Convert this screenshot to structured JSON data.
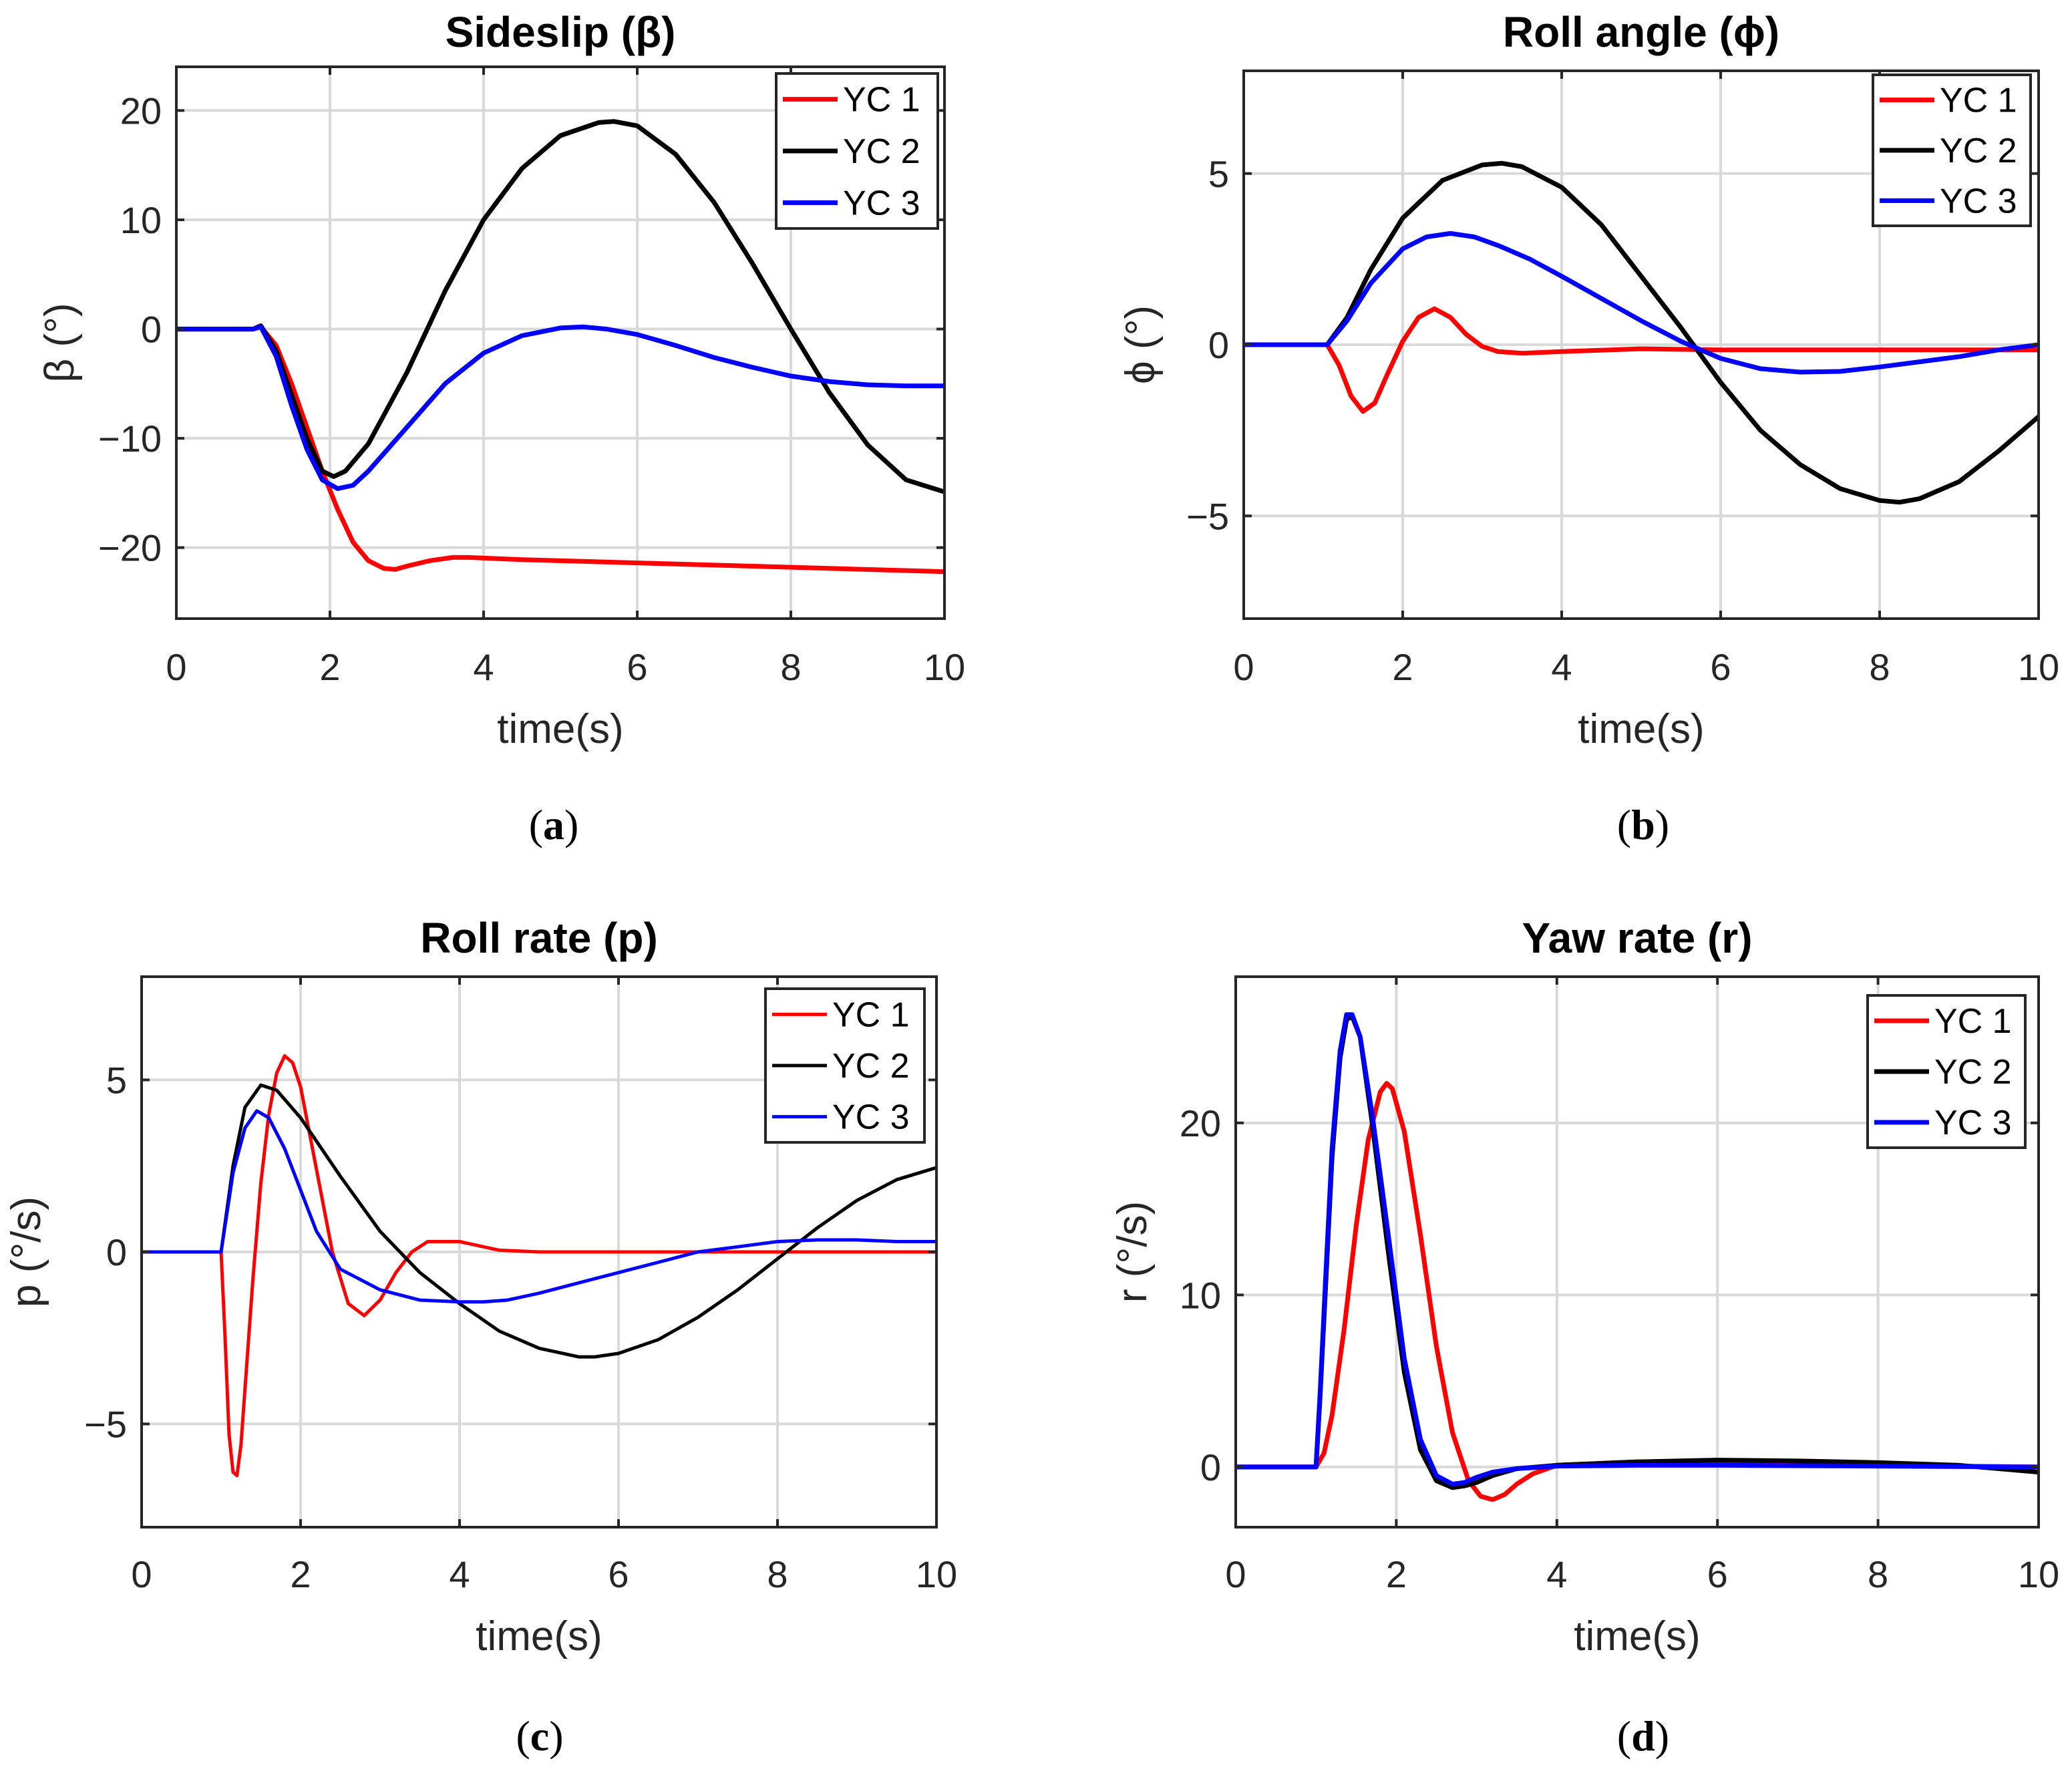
{
  "figure": {
    "panels": [
      {
        "caption_letter": "a"
      },
      {
        "caption_letter": "b"
      },
      {
        "caption_letter": "c"
      },
      {
        "caption_letter": "d"
      }
    ]
  },
  "chart_data": [
    {
      "type": "line",
      "title": "Sideslip (β)",
      "xlabel": "time(s)",
      "ylabel": "β (°)",
      "xlim": [
        0,
        10
      ],
      "ylim": [
        -26.5,
        24
      ],
      "xticks": [
        0,
        2,
        4,
        6,
        8,
        10
      ],
      "xtick_labels": [
        "0",
        "2",
        "4",
        "6",
        "8",
        "10"
      ],
      "yticks": [
        -20,
        -10,
        0,
        10,
        20
      ],
      "ytick_labels": [
        "−20",
        "−10",
        "0",
        "10",
        "20"
      ],
      "grid": true,
      "legend_position": "top-right",
      "series": [
        {
          "name": "YC 1",
          "color": "#ff0000",
          "x": [
            0,
            1.0,
            1.1,
            1.3,
            1.5,
            1.7,
            1.9,
            2.1,
            2.3,
            2.5,
            2.7,
            2.85,
            3.0,
            3.3,
            3.6,
            3.8,
            4.5,
            6,
            8,
            10
          ],
          "y": [
            0,
            0,
            0.2,
            -1.5,
            -5,
            -9,
            -13,
            -16.5,
            -19.5,
            -21.2,
            -21.9,
            -22.0,
            -21.7,
            -21.2,
            -20.9,
            -20.9,
            -21.1,
            -21.4,
            -21.8,
            -22.2
          ]
        },
        {
          "name": "YC 2",
          "color": "#000000",
          "x": [
            0,
            1.0,
            1.1,
            1.3,
            1.5,
            1.7,
            1.9,
            2.05,
            2.2,
            2.5,
            3.0,
            3.5,
            4.0,
            4.5,
            5.0,
            5.5,
            5.7,
            6.0,
            6.5,
            7.0,
            7.5,
            8.0,
            8.5,
            9.0,
            9.5,
            10.0
          ],
          "y": [
            0,
            0,
            0.3,
            -2,
            -6,
            -10,
            -13,
            -13.5,
            -13,
            -10.5,
            -4,
            3.5,
            10,
            14.7,
            17.7,
            18.9,
            19.0,
            18.6,
            16.0,
            11.6,
            6.0,
            0,
            -5.8,
            -10.6,
            -13.8,
            -14.9
          ]
        },
        {
          "name": "YC 3",
          "color": "#0000ff",
          "x": [
            0,
            1.0,
            1.1,
            1.3,
            1.5,
            1.7,
            1.9,
            2.1,
            2.3,
            2.5,
            3.0,
            3.5,
            4.0,
            4.5,
            5.0,
            5.3,
            5.6,
            6.0,
            6.5,
            7.0,
            7.5,
            8.0,
            8.5,
            9.0,
            9.5,
            10.0
          ],
          "y": [
            0,
            0,
            0.2,
            -2.5,
            -7,
            -11,
            -13.8,
            -14.6,
            -14.3,
            -13,
            -9,
            -5,
            -2.2,
            -0.6,
            0.1,
            0.2,
            0.0,
            -0.5,
            -1.5,
            -2.6,
            -3.5,
            -4.3,
            -4.8,
            -5.1,
            -5.2,
            -5.2
          ]
        }
      ]
    },
    {
      "type": "line",
      "title": "Roll angle (ϕ)",
      "xlabel": "time(s)",
      "ylabel": "ϕ (°)",
      "xlim": [
        0,
        10
      ],
      "ylim": [
        -8,
        8
      ],
      "xticks": [
        0,
        2,
        4,
        6,
        8,
        10
      ],
      "xtick_labels": [
        "0",
        "2",
        "4",
        "6",
        "8",
        "10"
      ],
      "yticks": [
        -5,
        0,
        5
      ],
      "ytick_labels": [
        "−5",
        "0",
        "5"
      ],
      "grid": true,
      "legend_position": "top-right",
      "series": [
        {
          "name": "YC 1",
          "color": "#ff0000",
          "x": [
            0,
            1.05,
            1.2,
            1.35,
            1.5,
            1.65,
            1.8,
            2.0,
            2.2,
            2.4,
            2.6,
            2.8,
            3.0,
            3.2,
            3.5,
            4.0,
            5.0,
            6.0,
            8.0,
            10.0
          ],
          "y": [
            0,
            0,
            -0.6,
            -1.5,
            -1.95,
            -1.7,
            -0.9,
            0.1,
            0.8,
            1.05,
            0.8,
            0.3,
            -0.05,
            -0.2,
            -0.25,
            -0.2,
            -0.12,
            -0.15,
            -0.15,
            -0.15
          ]
        },
        {
          "name": "YC 2",
          "color": "#000000",
          "x": [
            0,
            1.05,
            1.3,
            1.6,
            2.0,
            2.5,
            3.0,
            3.25,
            3.5,
            4.0,
            4.5,
            5.0,
            5.5,
            6.0,
            6.5,
            7.0,
            7.5,
            8.0,
            8.25,
            8.5,
            9.0,
            9.5,
            10.0
          ],
          "y": [
            0,
            0,
            0.8,
            2.2,
            3.7,
            4.8,
            5.25,
            5.3,
            5.2,
            4.6,
            3.5,
            2.0,
            0.5,
            -1.1,
            -2.5,
            -3.5,
            -4.2,
            -4.55,
            -4.6,
            -4.5,
            -4.0,
            -3.1,
            -2.1
          ]
        },
        {
          "name": "YC 3",
          "color": "#0000ff",
          "x": [
            0,
            1.05,
            1.3,
            1.6,
            2.0,
            2.3,
            2.6,
            2.9,
            3.2,
            3.6,
            4.0,
            4.5,
            5.0,
            5.5,
            6.0,
            6.5,
            7.0,
            7.5,
            8.0,
            8.5,
            9.0,
            9.5,
            10.0
          ],
          "y": [
            0,
            0,
            0.7,
            1.8,
            2.8,
            3.15,
            3.25,
            3.15,
            2.9,
            2.5,
            2.0,
            1.35,
            0.7,
            0.1,
            -0.4,
            -0.7,
            -0.8,
            -0.78,
            -0.65,
            -0.5,
            -0.35,
            -0.15,
            0.0
          ]
        }
      ]
    },
    {
      "type": "line",
      "title": "Roll rate (p)",
      "xlabel": "time(s)",
      "ylabel": "p (°/s)",
      "xlim": [
        0,
        10
      ],
      "ylim": [
        -8,
        8
      ],
      "xticks": [
        0,
        2,
        4,
        6,
        8,
        10
      ],
      "xtick_labels": [
        "0",
        "2",
        "4",
        "6",
        "8",
        "10"
      ],
      "yticks": [
        -5,
        0,
        5
      ],
      "ytick_labels": [
        "−5",
        "0",
        "5"
      ],
      "grid": true,
      "legend_position": "top-right",
      "series": [
        {
          "name": "YC 1",
          "color": "#ff0000",
          "x": [
            0,
            1.0,
            1.05,
            1.1,
            1.15,
            1.2,
            1.25,
            1.3,
            1.4,
            1.5,
            1.6,
            1.7,
            1.8,
            1.9,
            2.0,
            2.2,
            2.4,
            2.6,
            2.8,
            3.0,
            3.2,
            3.4,
            3.6,
            3.8,
            4.0,
            4.2,
            4.5,
            5.0,
            6.0,
            8.0,
            10.0
          ],
          "y": [
            0,
            0,
            -2.5,
            -5.3,
            -6.4,
            -6.5,
            -5.6,
            -4.0,
            -0.8,
            2.0,
            4.0,
            5.2,
            5.7,
            5.5,
            4.8,
            2.4,
            0.0,
            -1.5,
            -1.85,
            -1.4,
            -0.6,
            0.0,
            0.3,
            0.3,
            0.3,
            0.2,
            0.05,
            0.0,
            0.0,
            0.0,
            0.0
          ]
        },
        {
          "name": "YC 2",
          "color": "#000000",
          "x": [
            0,
            1.0,
            1.15,
            1.3,
            1.5,
            1.7,
            2.0,
            2.5,
            3.0,
            3.5,
            4.0,
            4.5,
            5.0,
            5.5,
            5.7,
            6.0,
            6.5,
            7.0,
            7.5,
            8.0,
            8.5,
            9.0,
            9.5,
            10.0
          ],
          "y": [
            0,
            0,
            2.5,
            4.2,
            4.85,
            4.7,
            3.9,
            2.2,
            0.6,
            -0.6,
            -1.5,
            -2.3,
            -2.8,
            -3.05,
            -3.05,
            -2.95,
            -2.55,
            -1.9,
            -1.1,
            -0.2,
            0.7,
            1.5,
            2.1,
            2.45
          ]
        },
        {
          "name": "YC 3",
          "color": "#0000ff",
          "x": [
            0,
            1.0,
            1.15,
            1.3,
            1.45,
            1.6,
            1.8,
            2.0,
            2.2,
            2.5,
            3.0,
            3.5,
            4.0,
            4.3,
            4.6,
            5.0,
            5.5,
            6.0,
            6.5,
            7.0,
            7.5,
            8.0,
            8.5,
            9.0,
            9.5,
            10.0
          ],
          "y": [
            0,
            0,
            2.3,
            3.6,
            4.1,
            3.9,
            3.0,
            1.8,
            0.6,
            -0.5,
            -1.1,
            -1.4,
            -1.45,
            -1.45,
            -1.4,
            -1.2,
            -0.9,
            -0.6,
            -0.3,
            0.0,
            0.15,
            0.3,
            0.35,
            0.35,
            0.3,
            0.3
          ]
        }
      ]
    },
    {
      "type": "line",
      "title": "Yaw rate (r)",
      "xlabel": "time(s)",
      "ylabel": "r (°/s)",
      "xlim": [
        0,
        10
      ],
      "ylim": [
        -3.5,
        28.5
      ],
      "xticks": [
        0,
        2,
        4,
        6,
        8,
        10
      ],
      "xtick_labels": [
        "0",
        "2",
        "4",
        "6",
        "8",
        "10"
      ],
      "yticks": [
        0,
        10,
        20
      ],
      "ytick_labels": [
        "0",
        "10",
        "20"
      ],
      "grid": true,
      "legend_position": "top-right",
      "series": [
        {
          "name": "YC 1",
          "color": "#ff0000",
          "x": [
            0,
            1.0,
            1.1,
            1.2,
            1.35,
            1.5,
            1.65,
            1.8,
            1.88,
            1.95,
            2.1,
            2.3,
            2.5,
            2.7,
            2.9,
            3.05,
            3.2,
            3.35,
            3.5,
            3.7,
            4.0,
            5.0,
            6.0,
            8.0,
            10.0
          ],
          "y": [
            0,
            0,
            0.8,
            3.0,
            8.0,
            14.0,
            19.0,
            21.8,
            22.3,
            22.0,
            19.5,
            13.5,
            7.0,
            2.0,
            -0.8,
            -1.7,
            -1.9,
            -1.6,
            -1.0,
            -0.4,
            0.1,
            0.3,
            0.25,
            0.1,
            0.0
          ]
        },
        {
          "name": "YC 2",
          "color": "#000000",
          "x": [
            0,
            1.0,
            1.05,
            1.12,
            1.2,
            1.3,
            1.38,
            1.45,
            1.55,
            1.7,
            1.9,
            2.1,
            2.3,
            2.5,
            2.7,
            2.85,
            3.0,
            3.2,
            3.5,
            4.0,
            4.5,
            5.0,
            6.0,
            7.0,
            8.0,
            9.0,
            10.0
          ],
          "y": [
            0,
            0,
            4.0,
            10.5,
            18.0,
            23.8,
            26.0,
            26.2,
            25.0,
            20.0,
            12.5,
            5.5,
            1.0,
            -0.8,
            -1.2,
            -1.1,
            -0.9,
            -0.5,
            -0.1,
            0.1,
            0.2,
            0.3,
            0.4,
            0.35,
            0.25,
            0.1,
            -0.3
          ]
        },
        {
          "name": "YC 3",
          "color": "#0000ff",
          "x": [
            0,
            1.0,
            1.05,
            1.12,
            1.2,
            1.3,
            1.38,
            1.45,
            1.55,
            1.7,
            1.9,
            2.1,
            2.3,
            2.5,
            2.7,
            2.85,
            3.0,
            3.2,
            3.5,
            4.0,
            5.0,
            6.0,
            8.0,
            10.0
          ],
          "y": [
            0,
            0,
            4.2,
            11.0,
            18.5,
            24.2,
            26.3,
            26.3,
            25.0,
            20.5,
            13.5,
            6.3,
            1.6,
            -0.5,
            -1.0,
            -0.9,
            -0.6,
            -0.3,
            -0.1,
            0.05,
            0.1,
            0.1,
            0.05,
            0.0
          ]
        }
      ]
    }
  ]
}
